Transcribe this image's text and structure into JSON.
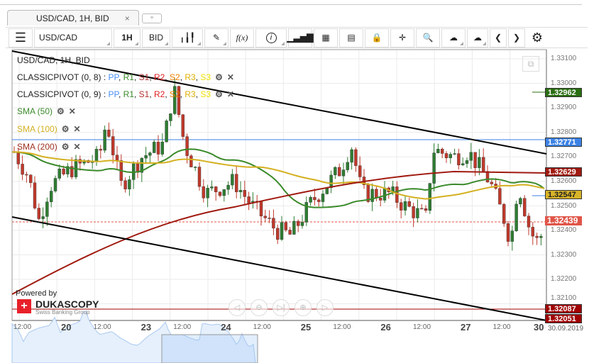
{
  "tab": {
    "title": "USD/CAD, 1H, BID",
    "close": "×",
    "new": "+"
  },
  "toolbar": {
    "menu": "☰",
    "instrument": "USD/CAD",
    "period": "1H",
    "side": "BID",
    "fx": "f(x)",
    "info": "i",
    "lock": "🔒",
    "prev": "❮",
    "next": "❯",
    "settings": "⚙"
  },
  "legend": {
    "title": "USD/CAD, 1H, BID",
    "pivots": [
      {
        "name": "CLASSICPIVOT (0, 8)"
      },
      {
        "name": "CLASSICPIVOT (0, 9)"
      }
    ],
    "pivot_levels": [
      {
        "t": "PP",
        "c": "#4a8ff0"
      },
      {
        "t": "R1",
        "c": "#3a8a2a"
      },
      {
        "t": "S1",
        "c": "#b03030"
      },
      {
        "t": "R2",
        "c": "#e02020"
      },
      {
        "t": "S2",
        "c": "#f08000"
      },
      {
        "t": "R3",
        "c": "#e0b000"
      },
      {
        "t": "S3",
        "c": "#f0e000"
      }
    ],
    "smas": [
      {
        "name": "SMA (50)",
        "c": "#3a8a2a"
      },
      {
        "name": "SMA (100)",
        "c": "#d4b020"
      },
      {
        "name": "SMA (200)",
        "c": "#a03020"
      }
    ]
  },
  "price_axis": [
    "1.33100",
    "1.33000",
    "1.32900",
    "1.32800",
    "1.32700",
    "1.32600",
    "1.32500",
    "1.32400",
    "1.32300",
    "1.32200",
    "1.32100"
  ],
  "badges": [
    {
      "v": "1.32962",
      "c": "#2a6e12"
    },
    {
      "v": "1.32771",
      "c": "#3c82e6"
    },
    {
      "v": "1.32629",
      "c": "#a01a10"
    },
    {
      "v": "1.32547",
      "c": "#d8b428"
    },
    {
      "v": "1.32439",
      "c": "#e05548"
    },
    {
      "v": "1.32087",
      "c": "#a00000"
    },
    {
      "v": "1.32051",
      "c": "#a00000"
    }
  ],
  "time_axis": [
    {
      "t": "12:00"
    },
    {
      "t": "20",
      "big": 1
    },
    {
      "t": "12:00"
    },
    {
      "t": "23",
      "big": 1
    },
    {
      "t": "12:00"
    },
    {
      "t": "24",
      "big": 1
    },
    {
      "t": "12:00"
    },
    {
      "t": "25",
      "big": 1
    },
    {
      "t": "12:00"
    },
    {
      "t": "26",
      "big": 1
    },
    {
      "t": "12:00"
    },
    {
      "t": "27",
      "big": 1
    },
    {
      "t": "12:00"
    },
    {
      "t": "30",
      "big": 1
    }
  ],
  "date_label": "30.09.2019",
  "logo": {
    "powered": "Powered by",
    "brand": "DUKASCOPY",
    "sub": "Swiss Banking Group"
  },
  "nav_buttons": [
    "◁",
    "⊖",
    "▷|",
    "⊕",
    "▷"
  ],
  "price_path": [
    [
      20,
      1.3272
    ],
    [
      40,
      1.3262
    ],
    [
      55,
      1.3244
    ],
    [
      70,
      1.3258
    ],
    [
      100,
      1.3265
    ],
    [
      140,
      1.327
    ],
    [
      150,
      1.3285
    ],
    [
      170,
      1.3258
    ],
    [
      200,
      1.327
    ],
    [
      230,
      1.3275
    ],
    [
      245,
      1.3298
    ],
    [
      260,
      1.3275
    ],
    [
      290,
      1.3255
    ],
    [
      330,
      1.326
    ],
    [
      355,
      1.325
    ],
    [
      390,
      1.324
    ],
    [
      410,
      1.3238
    ],
    [
      440,
      1.3252
    ],
    [
      480,
      1.3265
    ],
    [
      495,
      1.3275
    ],
    [
      510,
      1.3255
    ],
    [
      550,
      1.3255
    ],
    [
      570,
      1.325
    ],
    [
      600,
      1.3245
    ],
    [
      610,
      1.3273
    ],
    [
      640,
      1.327
    ],
    [
      660,
      1.3272
    ],
    [
      690,
      1.326
    ],
    [
      710,
      1.3245
    ],
    [
      720,
      1.3235
    ],
    [
      730,
      1.326
    ],
    [
      745,
      1.3242
    ],
    [
      755,
      1.3235
    ],
    [
      768,
      1.324
    ]
  ]
}
